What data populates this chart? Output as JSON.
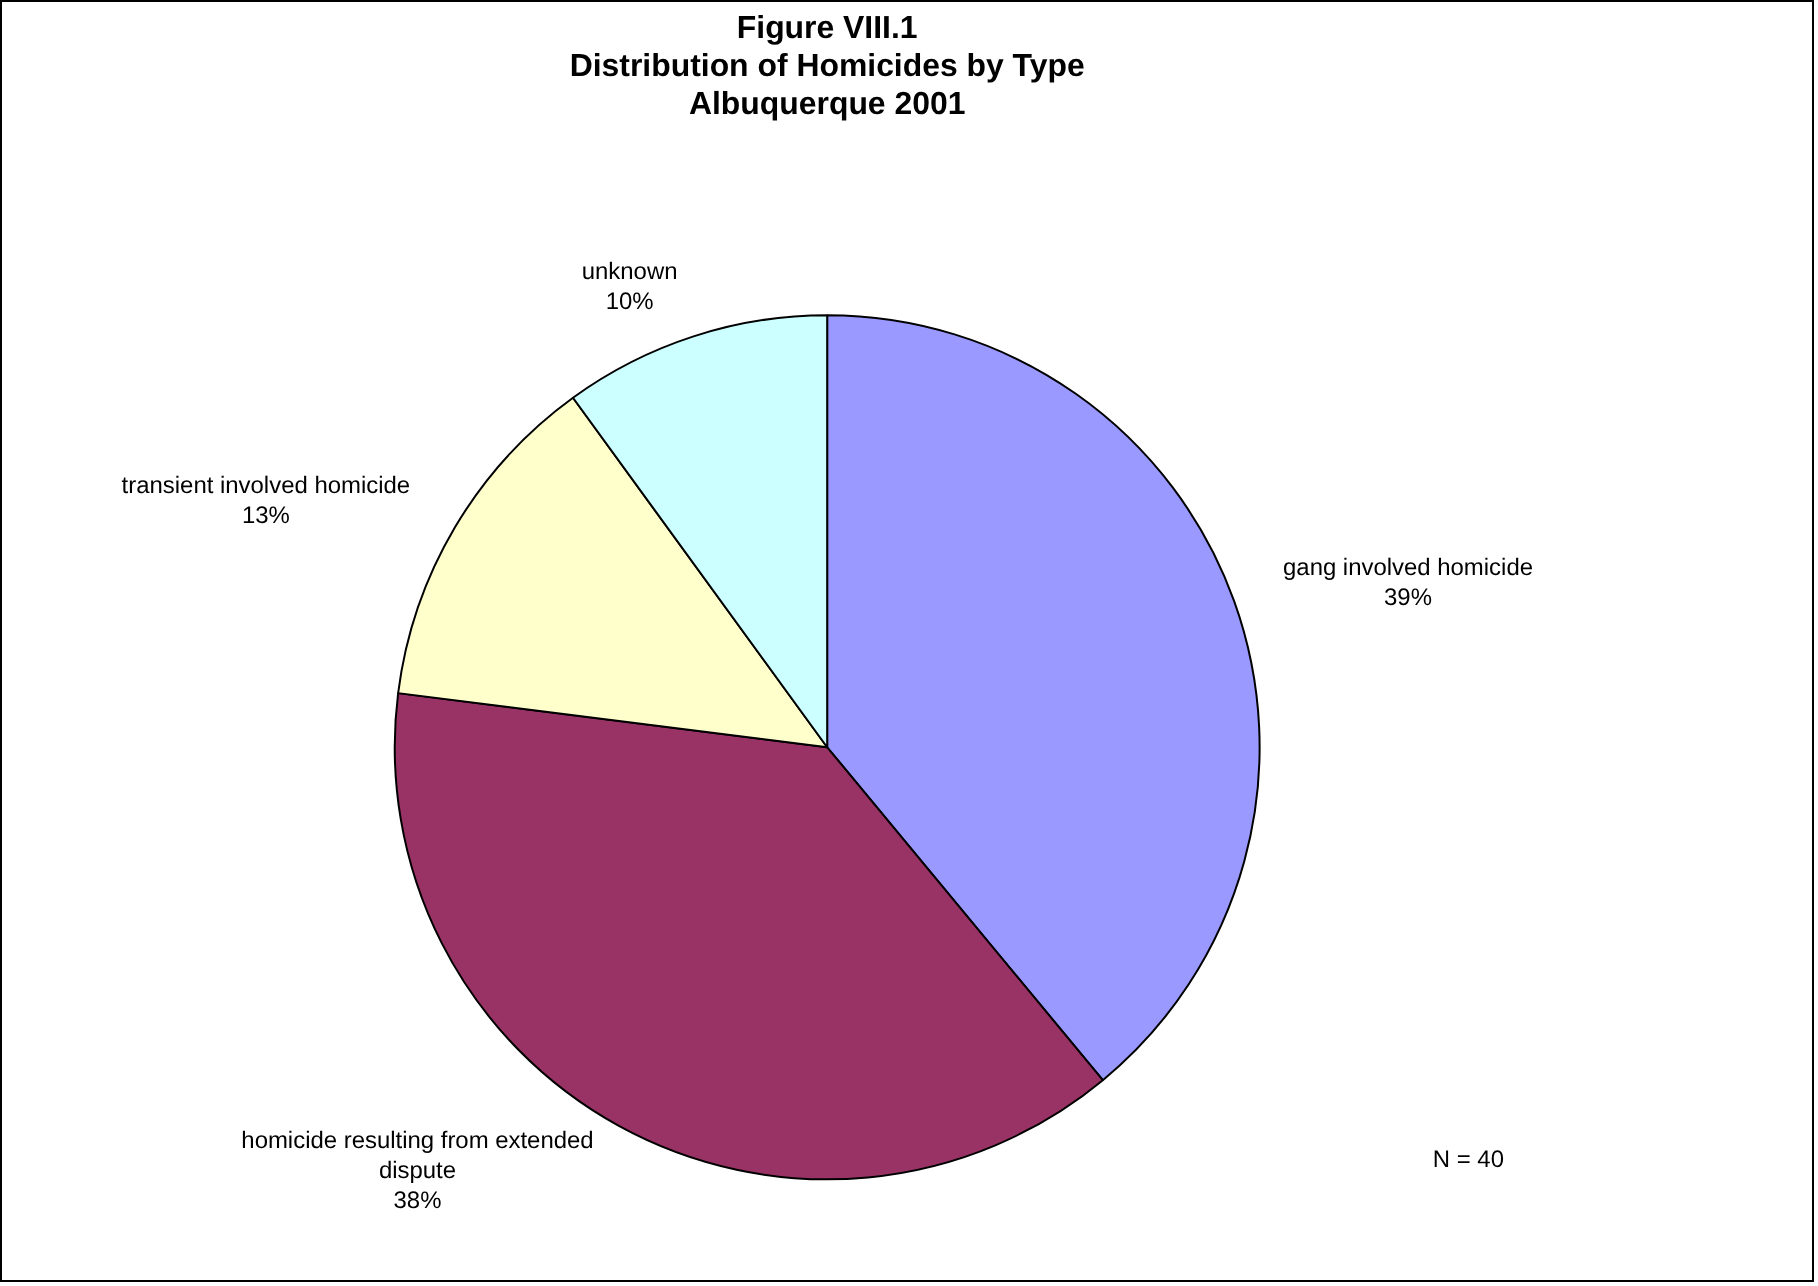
{
  "chart_data": {
    "type": "pie",
    "title": "Figure VIII.1\nDistribution of Homicides by Type\nAlbuquerque 2001",
    "categories": [
      "gang involved homicide",
      "homicide resulting from extended dispute",
      "transient involved homicide",
      "unknown"
    ],
    "values": [
      39,
      38,
      13,
      10
    ],
    "colors": [
      "#9999ff",
      "#993366",
      "#ffffcc",
      "#ccffff"
    ],
    "value_labels": [
      "39%",
      "38%",
      "13%",
      "10%"
    ],
    "annotations": [
      "N = 40"
    ],
    "legend": false
  }
}
